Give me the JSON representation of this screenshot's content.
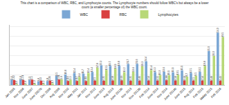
{
  "chart_data": {
    "type": "bar",
    "title": "This chart is a comparison of WBC, RBC, and Lymphocyte counts. The Lymphocyte numbers should follow WBC's but always be a lower",
    "subtitle": "count (a smaller percentage of) the WBC count.",
    "categories": [
      "Jan 2005",
      "Nov 2006",
      "June 2007",
      "June 2007b",
      "Dec 2008",
      "Aug 2009",
      "Nov 2010",
      "May 2011",
      "Jan 2012",
      "Nov 2012",
      "June 2013",
      "Aug 2013",
      "June 2013b",
      "Nov 2013",
      "Nov 2013b",
      "Feb 2014",
      "June 2014",
      "Nov 2014",
      "June 2014b",
      "June 2015",
      "Aug 2014",
      "Feb 2015",
      "Malay 2015",
      "Feb 2016"
    ],
    "series": [
      {
        "name": "WBC",
        "color": "#7ba7d4",
        "values": [
          5.6,
          5.8,
          5.3,
          3.8,
          4.1,
          9.5,
          10.8,
          12.4,
          11.7,
          13.4,
          20.3,
          19.7,
          19.8,
          21.7,
          21.8,
          24.4,
          13.3,
          13.6,
          13.1,
          15.1,
          12.5,
          13.5,
          35.0,
          54.0
        ],
        "value_labels": [
          "5.6",
          "5.8",
          "5.3",
          "3.8",
          "4.1",
          "9.5",
          "10.8",
          "12.4",
          "11.7",
          "13.4",
          "20.3",
          "19.7",
          "19.8",
          "21.7",
          "21.8",
          "24.4",
          "13.3",
          "13.6",
          "13.1",
          "15.1",
          "12.5",
          "13.5",
          "35.0",
          "54.0"
        ]
      },
      {
        "name": "RBC",
        "color": "#d94040",
        "values": [
          5.02,
          5.21,
          5.5,
          4.4,
          4.46,
          5.61,
          4.16,
          4.17,
          4.11,
          4.5,
          4.35,
          4.58,
          4.68,
          4.35,
          4.46,
          4.54,
          4.55,
          4.88,
          4.58,
          4.64,
          4.5,
          4.54,
          4.48,
          4.43
        ],
        "value_labels": [
          "5.02",
          "5.21",
          "5.5",
          "4.4",
          "4.46",
          "5.61",
          "4.16",
          "4.17",
          "4.11",
          "4.5",
          "4.35",
          "4.58",
          "4.68",
          "4.35",
          "4.46",
          "4.54",
          "4.55",
          "4.88",
          "4.58",
          "4.64",
          "4.5",
          "4.54",
          "4.48",
          "4.43"
        ]
      },
      {
        "name": "Lymphocytes",
        "color": "#b8d878",
        "values": [
          1.0,
          0.9,
          1.3,
          1.2,
          1.7,
          5.9,
          5.5,
          8.4,
          12.4,
          17.8,
          15.5,
          16.9,
          13.2,
          13.6,
          19.3,
          15.4,
          10.3,
          10.1,
          10.5,
          8.7,
          9.5,
          19.8,
          30.0,
          49.5
        ],
        "value_labels": [
          "1.0",
          "0.9",
          "1.3",
          "1.2",
          "1.7",
          "5.9",
          "5.5",
          "8.4",
          "12.4",
          "17.8",
          "15.5",
          "16.9",
          "13.2",
          "13.6",
          "19.3",
          "15.4",
          "10.3",
          "10.1",
          "10.5",
          "8.7",
          "9.5",
          "19.8",
          "30.0",
          "49.5"
        ]
      }
    ],
    "ylim": [
      0,
      62
    ],
    "yticks": [
      0,
      10,
      20,
      30,
      40,
      50,
      60
    ],
    "grid": true,
    "legend": "top",
    "data_labels": true,
    "tick_labels": "x"
  }
}
